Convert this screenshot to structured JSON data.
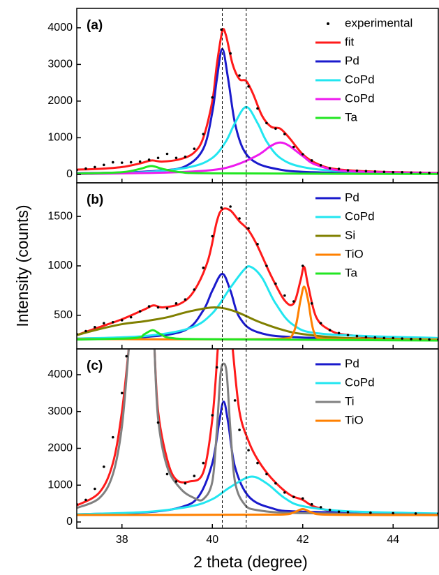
{
  "chart_data": [
    {
      "type": "line",
      "label": "(a)",
      "xlim": [
        37,
        45
      ],
      "xticks": [
        38,
        40,
        42,
        44
      ],
      "ylim": [
        -230,
        4530
      ],
      "yticks": [
        0,
        1000,
        2000,
        3000,
        4000
      ],
      "vlines": [
        40.22,
        40.75
      ],
      "series": [
        {
          "name": "experimental",
          "color": "#000000",
          "marker": "dots",
          "x": [
            37,
            37.2,
            37.4,
            37.6,
            37.8,
            38,
            38.2,
            38.4,
            38.6,
            38.8,
            39,
            39.2,
            39.4,
            39.6,
            39.8,
            40,
            40.2,
            40.4,
            40.6,
            40.8,
            41,
            41.2,
            41.4,
            41.6,
            41.8,
            42,
            42.2,
            42.4,
            42.6,
            42.8,
            43,
            43.2,
            43.4,
            43.6,
            43.8,
            44,
            44.2,
            44.4,
            44.6,
            44.8,
            45
          ],
          "values": [
            120,
            160,
            200,
            260,
            330,
            320,
            330,
            350,
            400,
            450,
            560,
            450,
            480,
            700,
            1100,
            2100,
            3950,
            3300,
            2700,
            2400,
            1800,
            1400,
            1250,
            1100,
            750,
            550,
            380,
            250,
            170,
            150,
            110,
            100,
            90,
            80,
            70,
            60,
            60,
            50,
            50,
            40,
            40
          ]
        },
        {
          "name": "fit",
          "color": "#ff1a1a",
          "x": [
            37,
            37.5,
            38,
            38.4,
            38.65,
            38.9,
            39.3,
            39.6,
            39.8,
            40,
            40.1,
            40.22,
            40.3,
            40.45,
            40.6,
            40.75,
            40.9,
            41.1,
            41.3,
            41.5,
            41.7,
            42,
            42.3,
            42.7,
            43.5,
            45
          ],
          "values": [
            130,
            150,
            200,
            300,
            380,
            350,
            420,
            600,
            1000,
            2000,
            3000,
            3900,
            3800,
            3000,
            2600,
            2550,
            2200,
            1600,
            1300,
            1250,
            1000,
            550,
            300,
            150,
            80,
            40
          ]
        },
        {
          "name": "Pd",
          "color": "#1a1acc",
          "x": [
            37,
            38,
            38.8,
            39.4,
            39.8,
            40,
            40.1,
            40.22,
            40.35,
            40.5,
            40.7,
            41,
            41.5,
            42,
            43,
            45
          ],
          "values": [
            30,
            50,
            100,
            220,
            700,
            1700,
            2600,
            3420,
            2600,
            1400,
            650,
            300,
            130,
            70,
            40,
            20
          ]
        },
        {
          "name": "CoPd",
          "color": "#22e6f0",
          "x": [
            37,
            38.5,
            39.5,
            40,
            40.3,
            40.5,
            40.75,
            41,
            41.2,
            41.5,
            42,
            43,
            45
          ],
          "values": [
            20,
            60,
            200,
            450,
            900,
            1400,
            1840,
            1400,
            900,
            450,
            200,
            80,
            30
          ]
        },
        {
          "name": "CoPd",
          "color": "#ee1aee",
          "x": [
            37,
            39,
            40,
            40.5,
            41,
            41.3,
            41.5,
            41.7,
            42,
            42.3,
            43,
            45
          ],
          "values": [
            10,
            50,
            120,
            250,
            520,
            780,
            870,
            780,
            500,
            260,
            90,
            30
          ]
        },
        {
          "name": "Ta",
          "color": "#22e622",
          "x": [
            37,
            38,
            38.4,
            38.65,
            38.9,
            39.3,
            40,
            45
          ],
          "values": [
            20,
            60,
            150,
            230,
            150,
            60,
            30,
            10
          ]
        }
      ]
    },
    {
      "type": "line",
      "label": "(b)",
      "ylabel": "Intensity (counts)",
      "xlim": [
        37,
        45
      ],
      "xticks": [
        38,
        40,
        42,
        44
      ],
      "ylim": [
        160,
        1840
      ],
      "yticks": [
        500,
        1000,
        1500
      ],
      "vlines": [
        40.22,
        40.75
      ],
      "series": [
        {
          "color": "#000000",
          "marker": "dots",
          "x": [
            37,
            37.2,
            37.4,
            37.6,
            37.8,
            38,
            38.2,
            38.4,
            38.6,
            38.8,
            39,
            39.2,
            39.4,
            39.6,
            39.8,
            40,
            40.2,
            40.4,
            40.6,
            40.8,
            41,
            41.2,
            41.4,
            41.6,
            41.8,
            42,
            42.2,
            42.4,
            42.6,
            42.8,
            43,
            43.2,
            43.4,
            43.6,
            43.8,
            44,
            44.2,
            44.4,
            44.6,
            44.8,
            45
          ],
          "values": [
            310,
            340,
            380,
            420,
            430,
            450,
            480,
            540,
            590,
            580,
            570,
            620,
            660,
            760,
            980,
            1300,
            1590,
            1600,
            1480,
            1380,
            1220,
            1000,
            820,
            700,
            640,
            1000,
            620,
            420,
            350,
            320,
            300,
            290,
            280,
            275,
            270,
            270,
            265,
            260,
            260,
            255,
            255
          ]
        },
        {
          "color": "#ff1a1a",
          "x": [
            37,
            37.5,
            38,
            38.5,
            38.7,
            38.9,
            39.3,
            39.6,
            39.9,
            40.1,
            40.22,
            40.4,
            40.6,
            40.8,
            41,
            41.3,
            41.6,
            41.8,
            41.95,
            42.03,
            42.12,
            42.3,
            42.6,
            43,
            44,
            45
          ],
          "values": [
            300,
            380,
            460,
            560,
            600,
            580,
            620,
            750,
            1050,
            1450,
            1570,
            1560,
            1450,
            1360,
            1200,
            900,
            650,
            620,
            850,
            990,
            800,
            480,
            350,
            300,
            270,
            260
          ]
        },
        {
          "name": "Pd",
          "color": "#1a1acc",
          "x": [
            37,
            38.5,
            39.4,
            39.8,
            40,
            40.22,
            40.4,
            40.6,
            41,
            42,
            45
          ],
          "values": [
            265,
            280,
            350,
            550,
            750,
            920,
            750,
            480,
            330,
            275,
            262
          ]
        },
        {
          "name": "CoPd",
          "color": "#22e6f0",
          "x": [
            37,
            38.5,
            39.5,
            40,
            40.4,
            40.7,
            40.85,
            41.1,
            41.4,
            41.8,
            42.5,
            45
          ],
          "values": [
            265,
            290,
            370,
            520,
            780,
            960,
            990,
            880,
            620,
            400,
            310,
            270
          ]
        },
        {
          "name": "Si",
          "color": "#808000",
          "x": [
            37,
            37.5,
            38,
            38.5,
            39,
            39.5,
            40.05,
            40.5,
            41,
            41.5,
            42,
            43,
            45
          ],
          "values": [
            300,
            360,
            410,
            440,
            480,
            540,
            580,
            540,
            440,
            360,
            310,
            270,
            255
          ]
        },
        {
          "name": "TiO",
          "color": "#ff8000",
          "x": [
            37,
            41.5,
            41.8,
            41.95,
            42.03,
            42.12,
            42.25,
            42.5,
            45
          ],
          "values": [
            260,
            262,
            330,
            650,
            790,
            650,
            330,
            262,
            255
          ]
        },
        {
          "name": "Ta",
          "color": "#22e622",
          "x": [
            37,
            38.3,
            38.5,
            38.68,
            38.85,
            39.1,
            40,
            45
          ],
          "values": [
            255,
            270,
            310,
            350,
            310,
            270,
            258,
            245
          ]
        }
      ]
    },
    {
      "type": "line",
      "label": "(c)",
      "xlabel": "2 theta (degree)",
      "xlim": [
        37,
        45
      ],
      "xticks": [
        38,
        40,
        42,
        44
      ],
      "ylim": [
        -170,
        4700
      ],
      "yticks": [
        0,
        1000,
        2000,
        3000,
        4000
      ],
      "vlines": [
        40.22,
        40.75
      ],
      "series": [
        {
          "color": "#000000",
          "marker": "dots",
          "x": [
            37,
            37.2,
            37.4,
            37.6,
            37.8,
            38,
            38.1,
            38.8,
            39,
            39.2,
            39.4,
            39.6,
            39.8,
            40,
            40.1,
            40.5,
            40.6,
            40.8,
            41,
            41.2,
            41.4,
            41.6,
            41.8,
            42,
            42.2,
            42.4,
            42.6,
            42.8,
            43,
            43.5,
            44,
            44.5,
            45
          ],
          "values": [
            480,
            600,
            900,
            1500,
            2300,
            3500,
            4500,
            2700,
            1300,
            1100,
            1050,
            1250,
            1600,
            2900,
            4200,
            3300,
            2500,
            1950,
            1600,
            1300,
            1050,
            800,
            680,
            640,
            480,
            400,
            330,
            280,
            270,
            250,
            240,
            230,
            230
          ]
        },
        {
          "color": "#ff1a1a",
          "x": [
            37,
            37.5,
            37.8,
            38,
            38.15,
            38.45,
            38.72,
            38.8,
            39,
            39.2,
            39.5,
            39.8,
            40,
            40.12,
            40.35,
            40.45,
            40.6,
            40.8,
            41,
            41.3,
            41.7,
            42,
            42.3,
            43,
            45
          ],
          "values": [
            450,
            800,
            1600,
            3000,
            4700,
            null,
            4700,
            3000,
            1700,
            1150,
            1100,
            1350,
            2800,
            4700,
            null,
            4700,
            3000,
            2200,
            1700,
            1200,
            750,
            600,
            400,
            260,
            210
          ]
        },
        {
          "name": "Pd",
          "color": "#1a1acc",
          "x": [
            37,
            38.5,
            39.3,
            39.7,
            40,
            40.15,
            40.25,
            40.35,
            40.5,
            40.8,
            41.3,
            42,
            45
          ],
          "values": [
            210,
            260,
            400,
            700,
            1600,
            2700,
            3270,
            2700,
            1500,
            700,
            380,
            280,
            220
          ]
        },
        {
          "name": "CoPd",
          "color": "#22e6f0",
          "x": [
            37,
            38.5,
            39.5,
            40,
            40.4,
            40.85,
            41.2,
            41.6,
            42,
            43,
            45
          ],
          "values": [
            210,
            270,
            420,
            620,
            950,
            1230,
            1050,
            650,
            430,
            290,
            230
          ]
        },
        {
          "name": "Ti",
          "color": "#808080",
          "x": [
            37,
            37.5,
            37.8,
            38,
            38.15,
            38.45,
            38.72,
            38.8,
            39,
            39.3,
            39.6,
            39.8,
            40,
            40.1,
            40.18,
            40.25,
            40.32,
            40.4,
            40.5,
            40.7,
            41,
            42,
            45
          ],
          "values": [
            380,
            650,
            1300,
            2600,
            4700,
            null,
            4700,
            2800,
            1500,
            900,
            650,
            620,
            1100,
            2500,
            4000,
            4300,
            4000,
            2500,
            1100,
            500,
            320,
            240,
            200
          ]
        },
        {
          "name": "TiO",
          "color": "#ff8000",
          "x": [
            37,
            41.5,
            41.8,
            42,
            42.2,
            42.5,
            45
          ],
          "values": [
            190,
            200,
            260,
            350,
            260,
            200,
            185
          ]
        }
      ]
    }
  ]
}
